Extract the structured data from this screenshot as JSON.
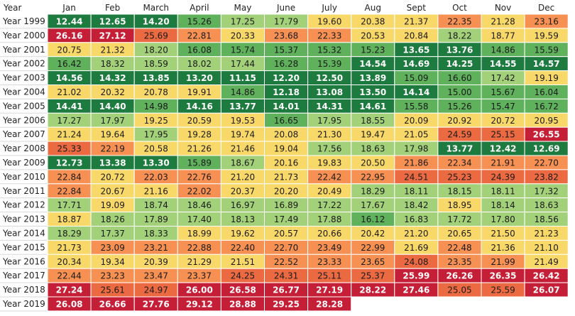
{
  "chart_data": {
    "type": "heatmap",
    "corner_label": "Year",
    "columns": [
      "Jan",
      "Feb",
      "March",
      "April",
      "May",
      "June",
      "July",
      "Aug",
      "Sept",
      "Oct",
      "Nov",
      "Dec"
    ],
    "rows": [
      "Year 1999",
      "Year 2000",
      "Year 2001",
      "Year 2002",
      "Year 2003",
      "Year 2004",
      "Year 2005",
      "Year 2006",
      "Year 2007",
      "Year 2008",
      "Year 2009",
      "Year 2010",
      "Year 2011",
      "Year 2012",
      "Year 2013",
      "Year 2014",
      "Year 2015",
      "Year 2016",
      "Year 2017",
      "Year 2018",
      "Year 2019"
    ],
    "values": [
      [
        "12.44",
        "12.65",
        "14.20",
        "15.26",
        "17.25",
        "17.79",
        "19.60",
        "20.38",
        "21.37",
        "22.35",
        "21.28",
        "23.16"
      ],
      [
        "26.16",
        "27.12",
        "25.69",
        "22.81",
        "20.33",
        "23.68",
        "22.33",
        "20.53",
        "20.84",
        "18.22",
        "18.77",
        "19.59"
      ],
      [
        "20.75",
        "21.32",
        "18.20",
        "16.08",
        "15.74",
        "15.37",
        "15.32",
        "15.23",
        "13.65",
        "13.76",
        "14.86",
        "15.59"
      ],
      [
        "16.42",
        "18.32",
        "18.59",
        "18.02",
        "17.44",
        "16.28",
        "15.39",
        "14.54",
        "14.69",
        "14.25",
        "14.55",
        "14.57"
      ],
      [
        "14.56",
        "14.32",
        "13.85",
        "13.20",
        "11.15",
        "12.20",
        "12.50",
        "13.89",
        "15.09",
        "16.60",
        "17.42",
        "19.19"
      ],
      [
        "21.02",
        "20.32",
        "20.78",
        "19.91",
        "14.86",
        "12.18",
        "13.08",
        "13.50",
        "14.14",
        "15.00",
        "15.67",
        "16.04"
      ],
      [
        "14.41",
        "14.40",
        "14.98",
        "14.16",
        "13.77",
        "14.01",
        "14.31",
        "14.61",
        "15.58",
        "15.26",
        "15.47",
        "16.72"
      ],
      [
        "17.27",
        "17.97",
        "19.25",
        "20.59",
        "19.53",
        "16.65",
        "17.95",
        "18.55",
        "20.09",
        "20.92",
        "20.72",
        "20.95"
      ],
      [
        "21.24",
        "19.64",
        "17.95",
        "19.28",
        "19.74",
        "20.08",
        "21.30",
        "19.47",
        "21.05",
        "24.59",
        "25.15",
        "26.55"
      ],
      [
        "25.33",
        "22.19",
        "20.58",
        "21.26",
        "21.46",
        "19.04",
        "17.56",
        "18.63",
        "17.98",
        "13.77",
        "12.42",
        "12.69"
      ],
      [
        "12.73",
        "13.38",
        "13.30",
        "15.89",
        "18.67",
        "20.16",
        "19.83",
        "20.50",
        "21.86",
        "22.34",
        "21.91",
        "22.70"
      ],
      [
        "22.84",
        "20.72",
        "22.03",
        "22.76",
        "21.20",
        "21.73",
        "22.42",
        "22.95",
        "24.51",
        "25.23",
        "24.39",
        "23.82"
      ],
      [
        "22.84",
        "20.67",
        "21.16",
        "22.02",
        "20.37",
        "20.20",
        "20.49",
        "18.29",
        "18.11",
        "18.15",
        "18.11",
        "17.32"
      ],
      [
        "17.71",
        "19.09",
        "18.74",
        "18.46",
        "16.97",
        "16.89",
        "17.22",
        "17.67",
        "18.42",
        "18.95",
        "18.14",
        "18.63"
      ],
      [
        "18.87",
        "18.26",
        "17.89",
        "17.40",
        "18.13",
        "17.49",
        "17.88",
        "16.12",
        "16.83",
        "17.72",
        "17.80",
        "18.56"
      ],
      [
        "18.29",
        "17.37",
        "18.33",
        "18.99",
        "19.62",
        "20.57",
        "20.66",
        "20.42",
        "21.20",
        "20.65",
        "21.50",
        "21.23"
      ],
      [
        "21.73",
        "23.09",
        "23.21",
        "22.88",
        "22.40",
        "22.70",
        "23.49",
        "22.99",
        "21.69",
        "22.48",
        "21.36",
        "21.10"
      ],
      [
        "20.34",
        "19.34",
        "20.39",
        "21.29",
        "21.51",
        "22.52",
        "23.33",
        "23.65",
        "24.08",
        "23.35",
        "21.99",
        "21.49"
      ],
      [
        "22.44",
        "23.23",
        "23.47",
        "23.37",
        "24.25",
        "24.31",
        "25.11",
        "25.37",
        "25.99",
        "26.26",
        "26.35",
        "26.42"
      ],
      [
        "27.24",
        "25.61",
        "24.97",
        "26.00",
        "26.58",
        "26.77",
        "27.19",
        "28.22",
        "27.46",
        "25.05",
        "25.59",
        "26.07"
      ],
      [
        "26.08",
        "26.66",
        "27.76",
        "29.12",
        "28.88",
        "29.25",
        "28.28",
        null,
        null,
        null,
        null,
        null
      ]
    ],
    "color_scale": [
      {
        "max": 14.8,
        "fill": "#1e7b3f",
        "text": "#ffffff"
      },
      {
        "max": 16.8,
        "fill": "#5fb15c",
        "text": "#1a1a1a"
      },
      {
        "max": 18.75,
        "fill": "#a3d179",
        "text": "#1a1a1a"
      },
      {
        "max": 21.75,
        "fill": "#f8d868",
        "text": "#1a1a1a"
      },
      {
        "max": 23.7,
        "fill": "#f69153",
        "text": "#1a1a1a"
      },
      {
        "max": 25.75,
        "fill": "#ec6a42",
        "text": "#1a1a1a"
      },
      {
        "max": 99,
        "fill": "#c51f37",
        "text": "#ffffff"
      }
    ]
  }
}
